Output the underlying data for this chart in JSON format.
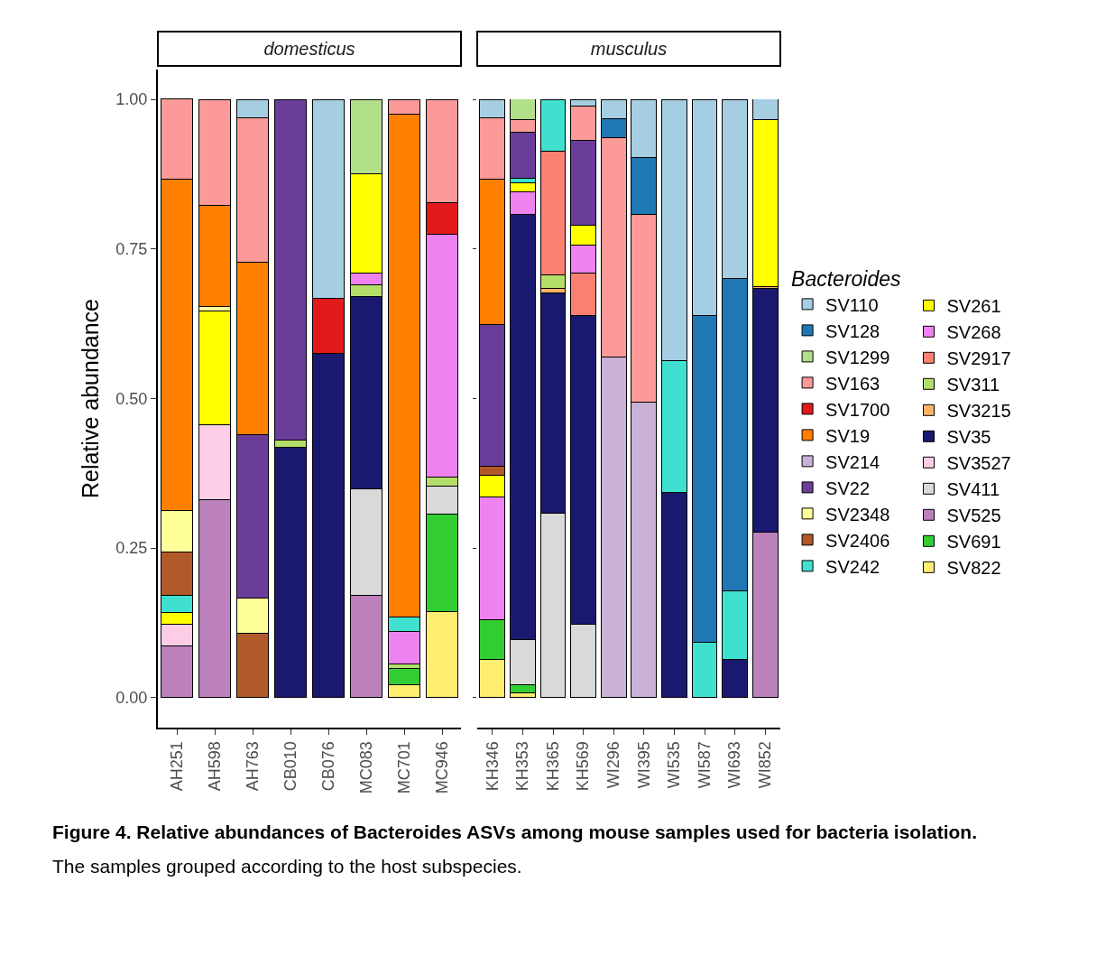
{
  "chart_data": [
    {
      "type": "bar",
      "title": "domesticus",
      "ylabel": "Relative abundance",
      "stacked": true,
      "legend": false,
      "grid": false,
      "categories": [
        "AH251",
        "AH598",
        "AH763",
        "CB010",
        "CB076",
        "MC083",
        "MC701",
        "MC946"
      ],
      "ylim": [
        -0.05,
        1.05
      ],
      "yticks": [
        {
          "value": 0,
          "label": "0.00"
        },
        {
          "value": 0.25,
          "label": "0.25"
        },
        {
          "value": 0.5,
          "label": "0.50"
        },
        {
          "value": 0.75,
          "label": "0.75"
        },
        {
          "value": 1,
          "label": "1.00"
        }
      ],
      "annotations": [
        "Figure 4. Relative abundances of Bacteroides ASVs among mouse samples used for bacteria isolation.",
        "The samples grouped according to the host subspecies."
      ],
      "series": [
        {
          "color": "#ffed6f",
          "values": [
            null,
            null,
            null,
            null,
            null,
            null,
            0.022,
            0.144
          ]
        },
        {
          "color": "#32cd32",
          "values": [
            null,
            null,
            null,
            null,
            null,
            null,
            0.027,
            0.163
          ]
        },
        {
          "color": "#bc80bd",
          "values": [
            0.086,
            0.331,
            null,
            null,
            null,
            0.171,
            null,
            null
          ]
        },
        {
          "color": "#d9d9d9",
          "values": [
            null,
            null,
            null,
            null,
            null,
            0.178,
            null,
            0.046
          ]
        },
        {
          "color": "#fccde5",
          "values": [
            0.037,
            0.126,
            null,
            null,
            null,
            null,
            null,
            null
          ]
        },
        {
          "color": "#191970",
          "values": [
            null,
            null,
            null,
            0.419,
            0.576,
            0.322,
            null,
            null
          ]
        },
        {
          "color": "#b3de69",
          "values": [
            null,
            null,
            null,
            0.011,
            null,
            0.019,
            0.008,
            0.015
          ]
        },
        {
          "color": "#ee82ee",
          "values": [
            null,
            null,
            null,
            null,
            null,
            0.019,
            0.053,
            0.406
          ]
        },
        {
          "color": "#ffff00",
          "values": [
            0.02,
            0.19,
            null,
            null,
            null,
            0.167,
            null,
            null
          ]
        },
        {
          "color": "#40e0d0",
          "values": [
            0.028,
            null,
            null,
            null,
            null,
            null,
            0.025,
            null
          ]
        },
        {
          "color": "#b15928",
          "values": [
            0.073,
            null,
            0.107,
            null,
            null,
            null,
            null,
            null
          ]
        },
        {
          "color": "#ffff99",
          "values": [
            0.069,
            0.007,
            0.06,
            null,
            null,
            null,
            null,
            null
          ]
        },
        {
          "color": "#6a3d9a",
          "values": [
            null,
            null,
            0.273,
            0.57,
            null,
            null,
            null,
            null
          ]
        },
        {
          "color": "#ff7f00",
          "values": [
            0.554,
            0.169,
            0.288,
            null,
            null,
            null,
            0.841,
            null
          ]
        },
        {
          "color": "#e31a1c",
          "values": [
            null,
            null,
            null,
            null,
            0.091,
            null,
            null,
            0.054
          ]
        },
        {
          "color": "#fb9a99",
          "values": [
            0.134,
            0.176,
            0.241,
            null,
            null,
            null,
            0.024,
            0.172
          ]
        },
        {
          "color": "#b2df8a",
          "values": [
            null,
            null,
            null,
            null,
            null,
            0.124,
            null,
            null
          ]
        },
        {
          "color": "#a6cee3",
          "values": [
            null,
            null,
            0.031,
            null,
            0.333,
            null,
            null,
            null
          ]
        }
      ]
    },
    {
      "type": "bar",
      "title": "musculus",
      "legend_title": "Bacteroides",
      "stacked": true,
      "legend": "right",
      "grid": false,
      "tick_labels": "x",
      "categories": [
        "KH346",
        "KH353",
        "KH365",
        "KH569",
        "WI296",
        "WI395",
        "WI535",
        "WI587",
        "WI693",
        "WI852"
      ],
      "ylim": [
        -0.05,
        1
      ],
      "yticks": [
        0,
        0.25,
        0.5,
        0.75,
        1
      ],
      "series": [
        {
          "name": "SV822",
          "color": "#ffed6f",
          "values": [
            0.064,
            0.008,
            null,
            null,
            null,
            null,
            null,
            null,
            null,
            null
          ]
        },
        {
          "name": "SV691",
          "color": "#32cd32",
          "values": [
            0.067,
            0.014,
            null,
            null,
            null,
            null,
            null,
            null,
            null,
            null
          ]
        },
        {
          "name": "SV525",
          "color": "#bc80bd",
          "values": [
            null,
            null,
            null,
            null,
            null,
            null,
            null,
            null,
            null,
            0.276
          ]
        },
        {
          "name": "SV411",
          "color": "#d9d9d9",
          "values": [
            null,
            0.075,
            0.308,
            0.122,
            null,
            null,
            null,
            null,
            null,
            null
          ]
        },
        {
          "name": "SV3527",
          "color": "#fccde5",
          "values": [
            null,
            null,
            null,
            null,
            null,
            null,
            null,
            null,
            null,
            null
          ]
        },
        {
          "name": "SV35",
          "color": "#191970",
          "values": [
            null,
            0.711,
            0.369,
            0.516,
            null,
            null,
            0.343,
            null,
            0.064,
            0.408
          ]
        },
        {
          "name": "SV3215",
          "color": "#fdb462",
          "values": [
            null,
            null,
            0.007,
            null,
            null,
            null,
            null,
            null,
            null,
            0.003
          ]
        },
        {
          "name": "SV311",
          "color": "#b3de69",
          "values": [
            null,
            null,
            0.023,
            null,
            null,
            null,
            null,
            null,
            null,
            null
          ]
        },
        {
          "name": "SV2917",
          "color": "#fa8072",
          "values": [
            null,
            null,
            0.207,
            0.071,
            null,
            null,
            null,
            null,
            null,
            null
          ]
        },
        {
          "name": "SV268",
          "color": "#ee82ee",
          "values": [
            0.205,
            0.037,
            null,
            0.048,
            null,
            null,
            null,
            null,
            null,
            null
          ]
        },
        {
          "name": "SV261",
          "color": "#ffff00",
          "values": [
            0.035,
            0.016,
            null,
            0.033,
            null,
            null,
            null,
            null,
            null,
            0.279
          ]
        },
        {
          "name": "SV242",
          "color": "#40e0d0",
          "values": [
            null,
            0.007,
            0.086,
            null,
            null,
            null,
            0.221,
            0.093,
            0.115,
            null
          ]
        },
        {
          "name": "SV2406",
          "color": "#b15928",
          "values": [
            0.016,
            null,
            null,
            null,
            null,
            null,
            null,
            null,
            null,
            null
          ]
        },
        {
          "name": "SV2348",
          "color": "#ffff99",
          "values": [
            null,
            null,
            null,
            null,
            null,
            null,
            null,
            null,
            null,
            null
          ]
        },
        {
          "name": "SV22",
          "color": "#6a3d9a",
          "values": [
            0.236,
            0.077,
            null,
            0.142,
            null,
            null,
            null,
            null,
            null,
            null
          ]
        },
        {
          "name": "SV214",
          "color": "#cab2d6",
          "values": [
            null,
            null,
            null,
            null,
            0.569,
            0.494,
            null,
            null,
            null,
            null
          ]
        },
        {
          "name": "SV19",
          "color": "#ff7f00",
          "values": [
            0.243,
            null,
            null,
            null,
            null,
            null,
            null,
            null,
            null,
            null
          ]
        },
        {
          "name": "SV1700",
          "color": "#e31a1c",
          "values": [
            null,
            null,
            null,
            null,
            null,
            null,
            null,
            null,
            null,
            null
          ]
        },
        {
          "name": "SV163",
          "color": "#fb9a99",
          "values": [
            0.103,
            0.021,
            null,
            0.057,
            0.367,
            0.313,
            null,
            null,
            null,
            null
          ]
        },
        {
          "name": "SV1299",
          "color": "#b2df8a",
          "values": [
            null,
            0.035,
            null,
            null,
            null,
            null,
            null,
            null,
            null,
            null
          ]
        },
        {
          "name": "SV128",
          "color": "#1f78b4",
          "values": [
            null,
            null,
            null,
            null,
            0.032,
            0.096,
            null,
            0.545,
            0.522,
            null
          ]
        },
        {
          "name": "SV110",
          "color": "#a6cee3",
          "values": [
            0.031,
            null,
            null,
            0.01,
            0.032,
            0.096,
            0.436,
            0.362,
            0.298,
            0.035
          ]
        }
      ]
    }
  ]
}
